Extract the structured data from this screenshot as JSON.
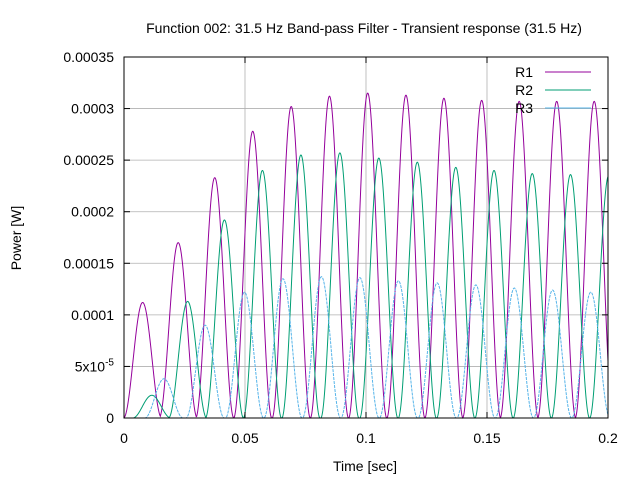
{
  "chart_data": {
    "type": "line",
    "title": "Function 002: 31.5 Hz Band-pass Filter - Transient response (31.5 Hz)",
    "xlabel": "Time [sec]",
    "ylabel": "Power [W]",
    "xlim": [
      0,
      0.2
    ],
    "ylim": [
      0,
      0.00035
    ],
    "x_ticks": [
      {
        "value": 0,
        "label": "0"
      },
      {
        "value": 0.05,
        "label": "0.05"
      },
      {
        "value": 0.1,
        "label": "0.1"
      },
      {
        "value": 0.15,
        "label": "0.15"
      },
      {
        "value": 0.2,
        "label": "0.2"
      }
    ],
    "y_ticks": [
      {
        "value": 0,
        "label": "0",
        "sup": ""
      },
      {
        "value": 5e-05,
        "label": "5x10",
        "sup": "-5"
      },
      {
        "value": 0.0001,
        "label": "0.0001",
        "sup": ""
      },
      {
        "value": 0.00015,
        "label": "0.00015",
        "sup": ""
      },
      {
        "value": 0.0002,
        "label": "0.0002",
        "sup": ""
      },
      {
        "value": 0.00025,
        "label": "0.00025",
        "sup": ""
      },
      {
        "value": 0.0003,
        "label": "0.0003",
        "sup": ""
      },
      {
        "value": 0.00035,
        "label": "0.00035",
        "sup": ""
      }
    ],
    "grid": true,
    "legend_position": "top-right",
    "series": [
      {
        "name": "R1",
        "color": "#94009b",
        "peaks": [
          [
            0.0077,
            0.000112
          ],
          [
            0.0224,
            0.00017
          ],
          [
            0.0375,
            0.000233
          ],
          [
            0.0532,
            0.000278
          ],
          [
            0.0691,
            0.000302
          ],
          [
            0.0849,
            0.000312
          ],
          [
            0.1007,
            0.000315
          ],
          [
            0.1165,
            0.000313
          ],
          [
            0.1322,
            0.00031
          ],
          [
            0.1478,
            0.000308
          ],
          [
            0.1633,
            0.000307
          ],
          [
            0.1788,
            0.000307
          ],
          [
            0.1943,
            0.000307
          ]
        ]
      },
      {
        "name": "R2",
        "color": "#009e73",
        "peaks": [
          [
            0.0115,
            2.2e-05
          ],
          [
            0.0263,
            0.000113
          ],
          [
            0.0415,
            0.000192
          ],
          [
            0.0572,
            0.00024
          ],
          [
            0.0731,
            0.000255
          ],
          [
            0.0892,
            0.000257
          ],
          [
            0.1053,
            0.000252
          ],
          [
            0.1212,
            0.000248
          ],
          [
            0.1371,
            0.000243
          ],
          [
            0.1529,
            0.00024
          ],
          [
            0.1687,
            0.000237
          ],
          [
            0.1845,
            0.000236
          ],
          [
            0.2003,
            0.000235
          ]
        ]
      },
      {
        "name": "R3",
        "color": "#56b4e9",
        "peaks": [
          [
            0.0165,
            3.8e-05
          ],
          [
            0.0335,
            9e-05
          ],
          [
            0.0498,
            0.000122
          ],
          [
            0.0657,
            0.000135
          ],
          [
            0.0816,
            0.000137
          ],
          [
            0.0975,
            0.000136
          ],
          [
            0.1134,
            0.000133
          ],
          [
            0.1294,
            0.000131
          ],
          [
            0.1454,
            0.000129
          ],
          [
            0.1613,
            0.000126
          ],
          [
            0.1771,
            0.000124
          ],
          [
            0.1929,
            0.000122
          ]
        ]
      }
    ]
  }
}
